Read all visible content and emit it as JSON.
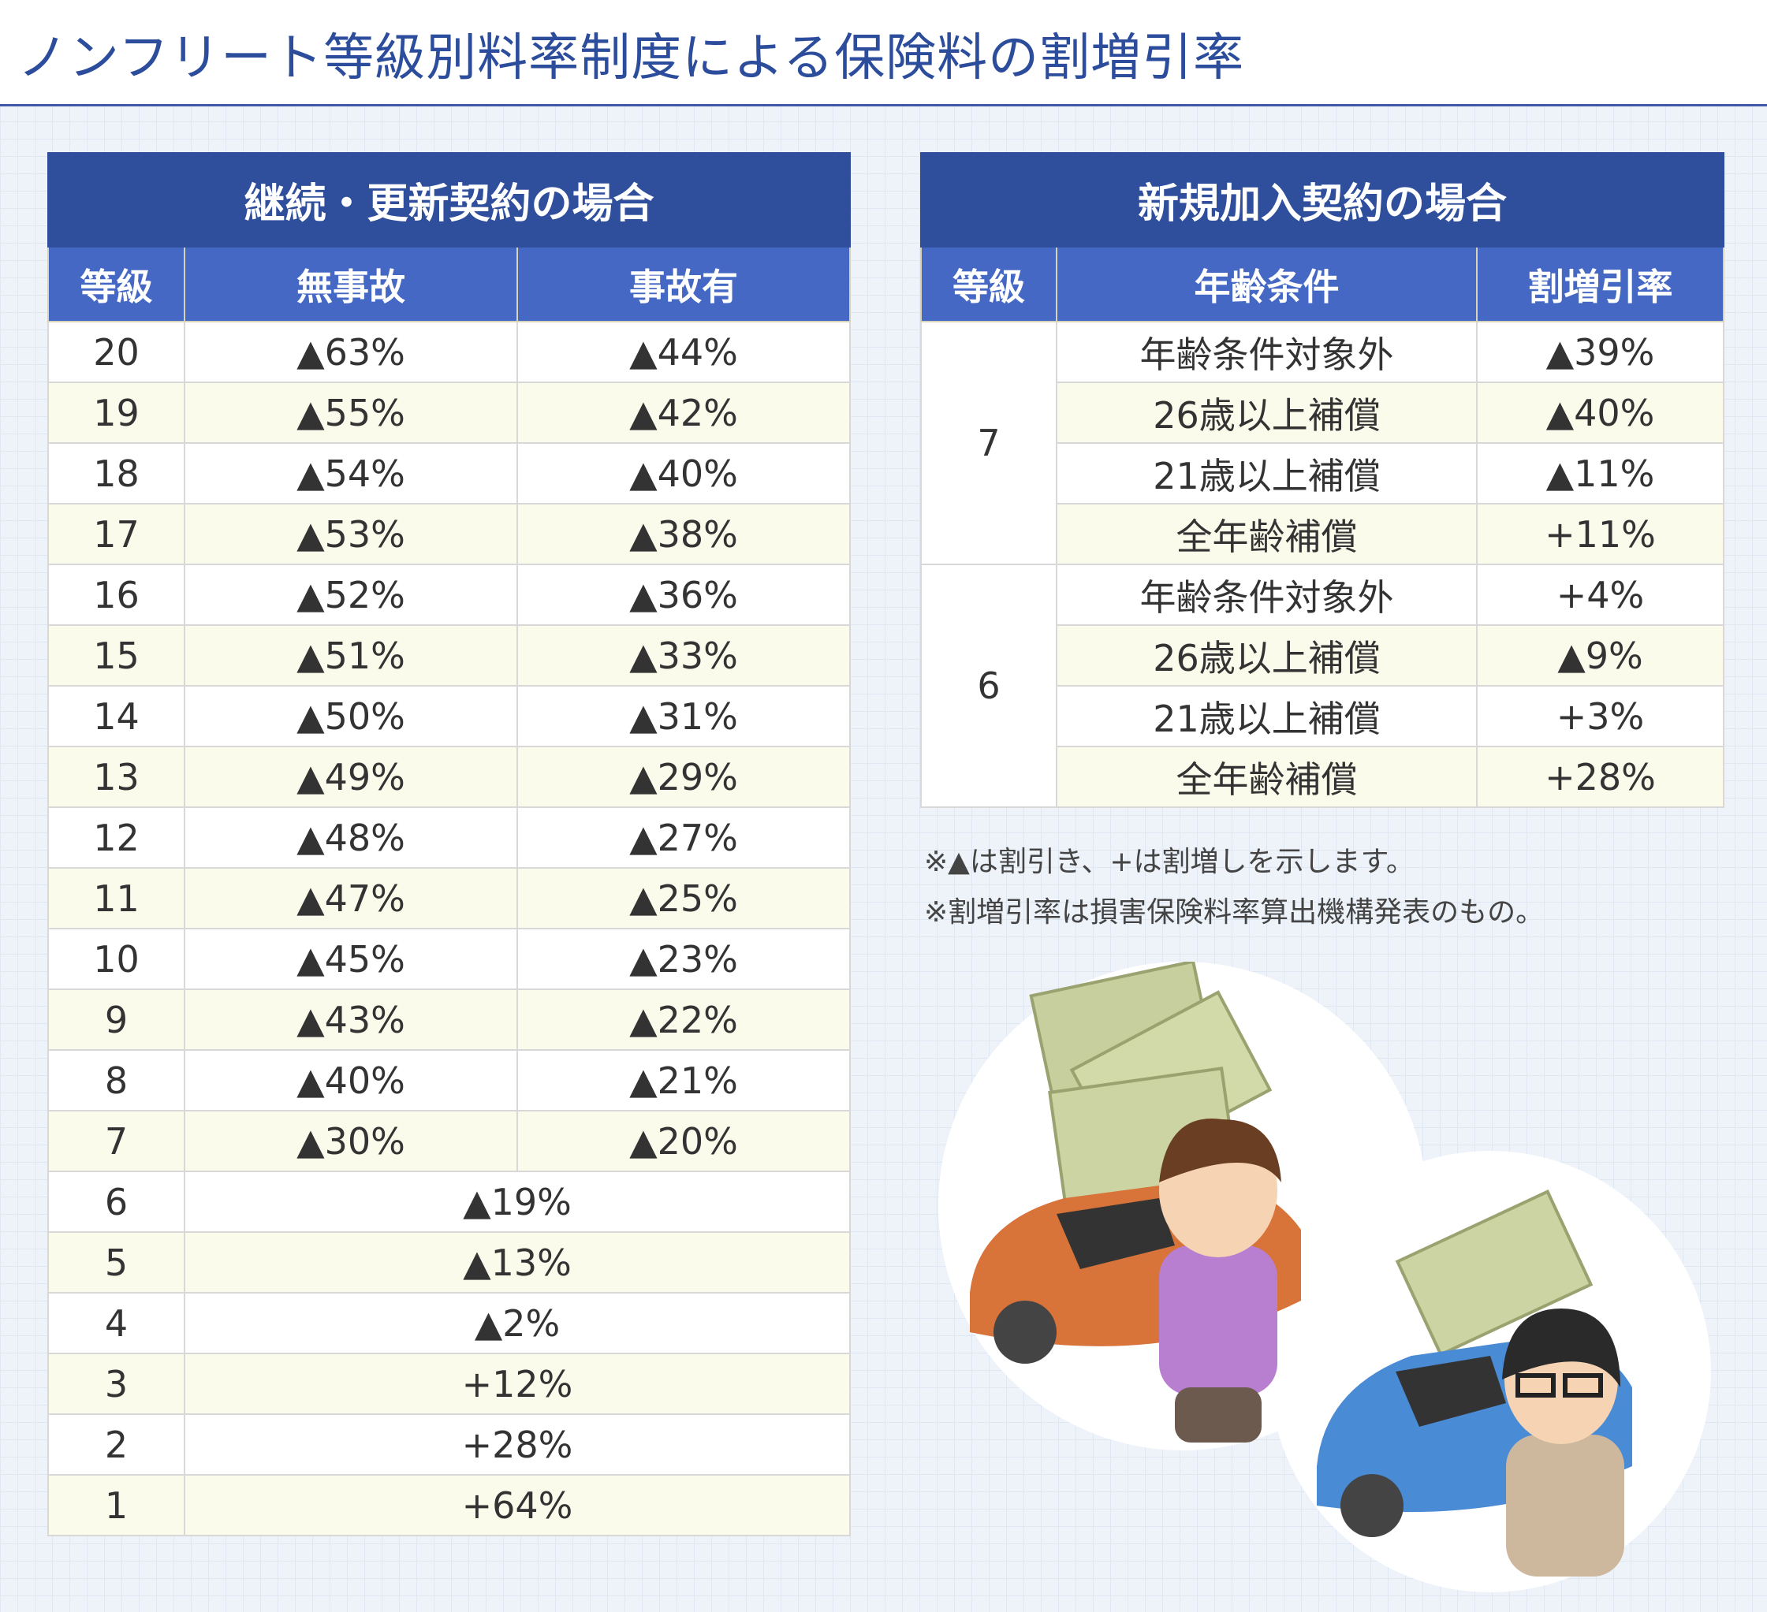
{
  "title": "ノンフリート等級別料率制度による保険料の割増引率",
  "renewal": {
    "heading": "継続・更新契約の場合",
    "columns": [
      "等級",
      "無事故",
      "事故有"
    ],
    "rows": [
      {
        "grade": "20",
        "no_accident": "▲63%",
        "accident": "▲44%"
      },
      {
        "grade": "19",
        "no_accident": "▲55%",
        "accident": "▲42%"
      },
      {
        "grade": "18",
        "no_accident": "▲54%",
        "accident": "▲40%"
      },
      {
        "grade": "17",
        "no_accident": "▲53%",
        "accident": "▲38%"
      },
      {
        "grade": "16",
        "no_accident": "▲52%",
        "accident": "▲36%"
      },
      {
        "grade": "15",
        "no_accident": "▲51%",
        "accident": "▲33%"
      },
      {
        "grade": "14",
        "no_accident": "▲50%",
        "accident": "▲31%"
      },
      {
        "grade": "13",
        "no_accident": "▲49%",
        "accident": "▲29%"
      },
      {
        "grade": "12",
        "no_accident": "▲48%",
        "accident": "▲27%"
      },
      {
        "grade": "11",
        "no_accident": "▲47%",
        "accident": "▲25%"
      },
      {
        "grade": "10",
        "no_accident": "▲45%",
        "accident": "▲23%"
      },
      {
        "grade": "9",
        "no_accident": "▲43%",
        "accident": "▲22%"
      },
      {
        "grade": "8",
        "no_accident": "▲40%",
        "accident": "▲21%"
      },
      {
        "grade": "7",
        "no_accident": "▲30%",
        "accident": "▲20%"
      },
      {
        "grade": "6",
        "rate": "▲19%"
      },
      {
        "grade": "5",
        "rate": "▲13%"
      },
      {
        "grade": "4",
        "rate": "▲2%"
      },
      {
        "grade": "3",
        "rate": "+12%"
      },
      {
        "grade": "2",
        "rate": "+28%"
      },
      {
        "grade": "1",
        "rate": "+64%"
      }
    ]
  },
  "new_contract": {
    "heading": "新規加入契約の場合",
    "columns": [
      "等級",
      "年齢条件",
      "割増引率"
    ],
    "groups": [
      {
        "grade": "7",
        "rows": [
          {
            "condition": "年齢条件対象外",
            "rate": "▲39%"
          },
          {
            "condition": "26歳以上補償",
            "rate": "▲40%"
          },
          {
            "condition": "21歳以上補償",
            "rate": "▲11%"
          },
          {
            "condition": "全年齢補償",
            "rate": "+11%"
          }
        ]
      },
      {
        "grade": "6",
        "rows": [
          {
            "condition": "年齢条件対象外",
            "rate": "+4%"
          },
          {
            "condition": "26歳以上補償",
            "rate": "▲9%"
          },
          {
            "condition": "21歳以上補償",
            "rate": "+3%"
          },
          {
            "condition": "全年齢補償",
            "rate": "+28%"
          }
        ]
      }
    ]
  },
  "notes": [
    "※▲は割引き、+は割増しを示します。",
    "※割増引率は損害保険料率算出機構発表のもの。"
  ],
  "colors": {
    "title": "#2c4c9c",
    "band": "#2f4f9d",
    "header": "#4468c4",
    "alt_row": "#fbfbeb"
  }
}
